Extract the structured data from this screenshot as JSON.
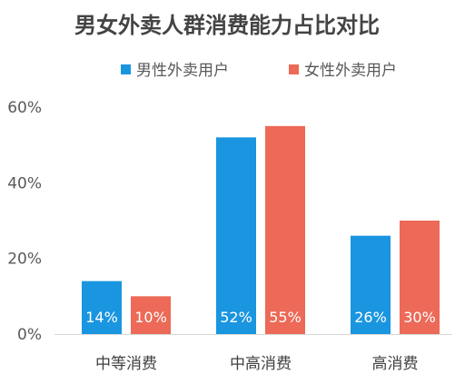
{
  "chart_data": {
    "type": "bar",
    "title": "男女外卖人群消费能力占比对比",
    "categories": [
      "中等消费",
      "中高消费",
      "高消费"
    ],
    "series": [
      {
        "name": "男性外卖用户",
        "color": "#1a95e0",
        "values": [
          14,
          52,
          26
        ],
        "labels": [
          "14%",
          "52%",
          "26%"
        ]
      },
      {
        "name": "女性外卖用户",
        "color": "#ec6a57",
        "values": [
          10,
          55,
          30
        ],
        "labels": [
          "10%",
          "55%",
          "30%"
        ]
      }
    ],
    "ylim": [
      0,
      60
    ],
    "yticks": [
      {
        "value": 0,
        "label": "0%"
      },
      {
        "value": 20,
        "label": "20%"
      },
      {
        "value": 40,
        "label": "40%"
      },
      {
        "value": 60,
        "label": "60%"
      }
    ],
    "grid": false,
    "legend_position": "top-center",
    "xlabel": "",
    "ylabel": ""
  }
}
